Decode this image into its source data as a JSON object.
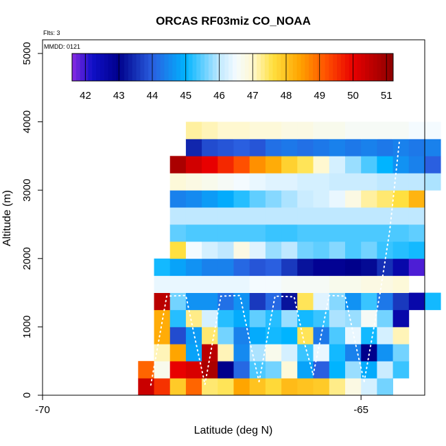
{
  "chart_data": {
    "type": "heatmap",
    "title": "ORCAS RF03miz CO_NOAA",
    "annotations": {
      "flights": "Flts: 3",
      "date": "MMDD: 0121"
    },
    "xlabel": "Latitude (deg N)",
    "ylabel": "Altitude (m)",
    "xlim": [
      -70,
      -64
    ],
    "ylim": [
      0,
      5200
    ],
    "x_ticks": [
      -70,
      -65
    ],
    "x_tick_labels": [
      "-70",
      "-65"
    ],
    "y_ticks": [
      0,
      1000,
      2000,
      3000,
      4000,
      5000
    ],
    "y_tick_labels": [
      "0",
      "1000",
      "2000",
      "3000",
      "4000",
      "5000"
    ],
    "colorbar": {
      "range": [
        41.6,
        51.2
      ],
      "ticks": [
        42,
        43,
        44,
        45,
        46,
        47,
        48,
        49,
        50,
        51
      ],
      "tick_labels": [
        "42",
        "43",
        "44",
        "45",
        "46",
        "47",
        "48",
        "49",
        "50",
        "51"
      ],
      "color_stops": [
        [
          41.6,
          "#8a2be2"
        ],
        [
          42.2,
          "#1010c8"
        ],
        [
          43.0,
          "#00008b"
        ],
        [
          44.0,
          "#2a5fe0"
        ],
        [
          45.0,
          "#00b4ff"
        ],
        [
          46.0,
          "#bfe8ff"
        ],
        [
          46.5,
          "#f4fbff"
        ],
        [
          47.0,
          "#fff8d0"
        ],
        [
          47.6,
          "#ffe040"
        ],
        [
          48.4,
          "#ffa500"
        ],
        [
          49.2,
          "#ff5000"
        ],
        [
          50.0,
          "#e80000"
        ],
        [
          51.2,
          "#8b0000"
        ]
      ]
    },
    "cell_width_deg": 0.25,
    "rows": [
      {
        "alt_bottom": 0,
        "alt_top": 250,
        "lat_start": -68.5,
        "values": [
          50.4,
          49.5,
          47.9,
          49.0,
          47.4,
          47.5,
          48.4,
          48.0,
          47.7,
          48.1,
          48.0,
          47.9,
          47.3,
          46.8,
          46.2,
          45.6
        ]
      },
      {
        "alt_bottom": 250,
        "alt_top": 500,
        "lat_start": -68.5,
        "values": [
          49.0,
          46.7,
          50.0,
          50.2,
          50.8,
          43.0,
          44.1,
          45.4,
          45.6,
          46.9,
          44.8,
          44.0,
          45.0,
          45.8,
          44.9,
          46.1,
          45.3
        ]
      },
      {
        "alt_bottom": 500,
        "alt_top": 750,
        "lat_start": -68.25,
        "values": [
          47.1,
          48.4,
          44.8,
          50.6,
          47.1,
          44.5,
          45.9,
          46.7,
          46.2,
          45.3,
          46.4,
          45.1,
          44.4,
          43.0,
          44.6,
          45.6
        ]
      },
      {
        "alt_bottom": 750,
        "alt_top": 1000,
        "lat_start": -68.25,
        "values": [
          48.3,
          43.8,
          44.7,
          47.4,
          45.6,
          44.4,
          44.9,
          45.1,
          45.0,
          47.5,
          44.3,
          45.4,
          46.4,
          45.1,
          46.2,
          47.1
        ]
      },
      {
        "alt_bottom": 1000,
        "alt_top": 1250,
        "lat_start": -68.25,
        "values": [
          48.3,
          45.2,
          47.3,
          46.2,
          45.2,
          44.9,
          45.5,
          45.2,
          45.8,
          45.1,
          45.3,
          45.9,
          45.8,
          46.6,
          45.6,
          42.6
        ]
      },
      {
        "alt_bottom": 1250,
        "alt_top": 1500,
        "lat_start": -68.25,
        "values": [
          50.6,
          45.6,
          44.6,
          44.6,
          44.2,
          44.6,
          43.6,
          44.1,
          43.2,
          47.5,
          46.3,
          45.7,
          44.6,
          45.3,
          44.3,
          43.6,
          42.6,
          45.1
        ]
      },
      {
        "alt_bottom": 1500,
        "alt_top": 1750,
        "lat_start": -68.25,
        "values": [
          46.4,
          46.4,
          46.4,
          46.4,
          46.4,
          46.4,
          46.5,
          46.5,
          46.6,
          46.6,
          46.6,
          46.7,
          46.7,
          46.8,
          46.8,
          46.9
        ]
      },
      {
        "alt_bottom": 1750,
        "alt_top": 2000,
        "lat_start": -68.25,
        "values": [
          45.1,
          44.8,
          44.6,
          44.4,
          44.4,
          44.1,
          43.9,
          44.0,
          43.6,
          43.2,
          42.9,
          42.9,
          43.0,
          43.1,
          43.5,
          42.6,
          41.9
        ]
      },
      {
        "alt_bottom": 2000,
        "alt_top": 2250,
        "lat_start": -68.0,
        "values": [
          47.6,
          46.5,
          46.2,
          46.0,
          46.8,
          46.3,
          45.8,
          46.0,
          45.6,
          45.5,
          45.7,
          45.4,
          45.6,
          45.3,
          45.2,
          45.1
        ]
      },
      {
        "alt_bottom": 2250,
        "alt_top": 2500,
        "lat_start": -68.0,
        "values": [
          45.5,
          45.4,
          45.4,
          45.4,
          45.4,
          45.4,
          45.3,
          45.3,
          45.4,
          45.4,
          45.4,
          45.4,
          45.4,
          45.4,
          45.4,
          45.5
        ]
      },
      {
        "alt_bottom": 2500,
        "alt_top": 2750,
        "lat_start": -68.0,
        "values": [
          46.0,
          46.0,
          46.0,
          46.0,
          46.0,
          46.0,
          46.0,
          46.0,
          46.0,
          46.0,
          46.0,
          46.0,
          46.0,
          46.0,
          46.0,
          46.0
        ]
      },
      {
        "alt_bottom": 2750,
        "alt_top": 3000,
        "lat_start": -68.0,
        "values": [
          44.4,
          44.5,
          44.7,
          44.9,
          45.2,
          45.5,
          45.7,
          45.9,
          46.1,
          46.2,
          46.4,
          46.8,
          47.2,
          47.4,
          47.6,
          48.2
        ]
      },
      {
        "alt_bottom": 3000,
        "alt_top": 3250,
        "lat_start": -68.0,
        "values": [
          46.9,
          46.8,
          46.7,
          46.6,
          46.5,
          46.4,
          46.3,
          46.3,
          46.2,
          46.2,
          46.1,
          46.1,
          46.1,
          46.0,
          46.0,
          46.0,
          45.9
        ]
      },
      {
        "alt_bottom": 3250,
        "alt_top": 3500,
        "lat_start": -68.0,
        "values": [
          50.8,
          50.3,
          50.0,
          49.6,
          49.2,
          48.6,
          48.3,
          47.8,
          47.5,
          47.0,
          46.2,
          45.8,
          45.4,
          45.0,
          44.6,
          44.4,
          44.0
        ]
      },
      {
        "alt_bottom": 3500,
        "alt_top": 3750,
        "lat_start": -67.75,
        "values": [
          43.4,
          43.8,
          43.9,
          44.0,
          43.9,
          44.2,
          44.3,
          44.2,
          44.3,
          44.4,
          44.3,
          44.4,
          44.3,
          44.4,
          44.3,
          44.4
        ]
      },
      {
        "alt_bottom": 3750,
        "alt_top": 4000,
        "lat_start": -67.75,
        "values": [
          47.2,
          47.1,
          47.0,
          47.0,
          46.9,
          46.9,
          46.8,
          46.8,
          46.7,
          46.7,
          46.6,
          46.6,
          46.6,
          46.6,
          46.5,
          46.5
        ]
      }
    ]
  }
}
